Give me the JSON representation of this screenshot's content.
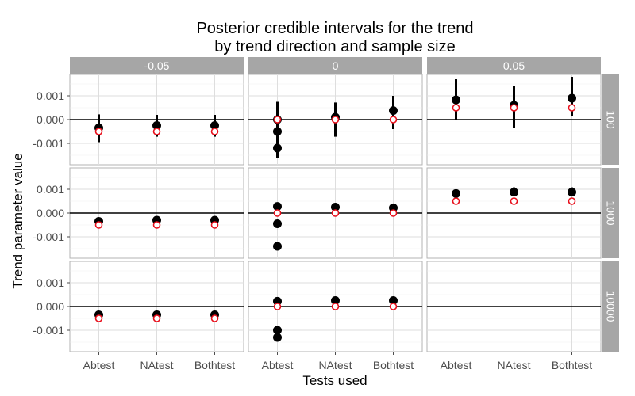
{
  "chart_data": {
    "type": "scatter",
    "title": "Posterior credible intervals for the trend\nby trend direction and sample size",
    "xlabel": "Tests used",
    "ylabel": "Trend parameter value",
    "categories": [
      "Abtest",
      "NAtest",
      "Bothtest"
    ],
    "col_facets": [
      "-0.05",
      "0",
      "0.05"
    ],
    "row_facets": [
      "100",
      "1000",
      "10000"
    ],
    "ylim": [
      -0.0019,
      0.0019
    ],
    "yticks": [
      -0.001,
      0.0,
      0.001
    ],
    "ytick_labels": [
      "-0.001",
      "0.000",
      "0.001"
    ],
    "reference_line": 0,
    "grid": true,
    "colors": {
      "estimate": "#000000",
      "true_value": "#e8101c",
      "strip": "#a6a6a6"
    },
    "panels": [
      {
        "col": 0,
        "row": 0,
        "points": [
          {
            "x": "Abtest",
            "estimate": -0.00035,
            "lo": -0.00095,
            "hi": 0.00022,
            "true": -0.0005
          },
          {
            "x": "NAtest",
            "estimate": -0.00025,
            "lo": -0.00072,
            "hi": 0.0002,
            "true": -0.0005
          },
          {
            "x": "Bothtest",
            "estimate": -0.00025,
            "lo": -0.00072,
            "hi": 0.0002,
            "true": -0.0005
          }
        ]
      },
      {
        "col": 1,
        "row": 0,
        "points": [
          {
            "x": "Abtest",
            "estimate": 0.0,
            "lo": -0.0016,
            "hi": 0.00075,
            "true": 0.0,
            "extra": [
              -0.0005,
              -0.0012
            ]
          },
          {
            "x": "NAtest",
            "estimate": 0.0001,
            "lo": -0.00072,
            "hi": 0.00072,
            "true": 0.0
          },
          {
            "x": "Bothtest",
            "estimate": 0.00038,
            "lo": -0.0004,
            "hi": 0.001,
            "true": 0.0
          }
        ]
      },
      {
        "col": 2,
        "row": 0,
        "points": [
          {
            "x": "Abtest",
            "estimate": 0.00083,
            "lo": 0.0,
            "hi": 0.0017,
            "true": 0.0005
          },
          {
            "x": "NAtest",
            "estimate": 0.0006,
            "lo": -0.00035,
            "hi": 0.0014,
            "true": 0.0005
          },
          {
            "x": "Bothtest",
            "estimate": 0.0009,
            "lo": 0.00015,
            "hi": 0.0018,
            "true": 0.0005
          }
        ]
      },
      {
        "col": 0,
        "row": 1,
        "points": [
          {
            "x": "Abtest",
            "estimate": -0.00035,
            "lo": -0.00045,
            "hi": -0.00025,
            "true": -0.0005
          },
          {
            "x": "NAtest",
            "estimate": -0.0003,
            "lo": -0.0004,
            "hi": -0.0002,
            "true": -0.0005
          },
          {
            "x": "Bothtest",
            "estimate": -0.0003,
            "lo": -0.0004,
            "hi": -0.0002,
            "true": -0.0005
          }
        ]
      },
      {
        "col": 1,
        "row": 1,
        "points": [
          {
            "x": "Abtest",
            "estimate": 0.00028,
            "lo": 0.00012,
            "hi": 0.00042,
            "true": 0.0,
            "extra": [
              -0.00045,
              -0.0014
            ]
          },
          {
            "x": "NAtest",
            "estimate": 0.00025,
            "lo": 0.0001,
            "hi": 0.0004,
            "true": 0.0
          },
          {
            "x": "Bothtest",
            "estimate": 0.00022,
            "lo": 0.0001,
            "hi": 0.00035,
            "true": 0.0
          }
        ]
      },
      {
        "col": 2,
        "row": 1,
        "points": [
          {
            "x": "Abtest",
            "estimate": 0.00082,
            "lo": 0.00065,
            "hi": 0.001,
            "true": 0.0005
          },
          {
            "x": "NAtest",
            "estimate": 0.00088,
            "lo": 0.0007,
            "hi": 0.00108,
            "true": 0.0005
          },
          {
            "x": "Bothtest",
            "estimate": 0.00088,
            "lo": 0.0007,
            "hi": 0.00108,
            "true": 0.0005
          }
        ]
      },
      {
        "col": 0,
        "row": 2,
        "points": [
          {
            "x": "Abtest",
            "estimate": -0.00035,
            "lo": -0.00042,
            "hi": -0.00028,
            "true": -0.0005
          },
          {
            "x": "NAtest",
            "estimate": -0.00035,
            "lo": -0.00042,
            "hi": -0.00028,
            "true": -0.0005
          },
          {
            "x": "Bothtest",
            "estimate": -0.00035,
            "lo": -0.00042,
            "hi": -0.00028,
            "true": -0.0005
          }
        ]
      },
      {
        "col": 1,
        "row": 2,
        "points": [
          {
            "x": "Abtest",
            "estimate": 0.00022,
            "lo": 0.00015,
            "hi": 0.0003,
            "true": 0.0,
            "extra": [
              -0.001,
              -0.0013
            ]
          },
          {
            "x": "NAtest",
            "estimate": 0.00025,
            "lo": 0.00018,
            "hi": 0.00035,
            "true": 0.0
          },
          {
            "x": "Bothtest",
            "estimate": 0.00025,
            "lo": 0.00018,
            "hi": 0.00035,
            "true": 0.0
          }
        ]
      },
      {
        "col": 2,
        "row": 2,
        "points": []
      }
    ]
  }
}
